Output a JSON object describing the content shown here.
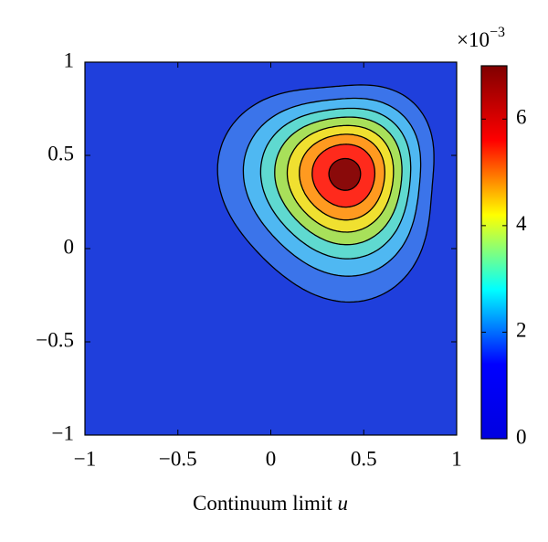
{
  "chart_data": {
    "type": "contour",
    "xlabel": "Continuum limit",
    "xlabel_variable": "u",
    "xlim": [
      -1,
      1
    ],
    "ylim": [
      -1,
      1
    ],
    "xticks": [
      {
        "value": -1,
        "label": "−1"
      },
      {
        "value": -0.5,
        "label": "−0.5"
      },
      0,
      0.5,
      1
    ],
    "yticks": [
      {
        "value": -1,
        "label": "−1"
      },
      {
        "value": -0.5,
        "label": "−0.5"
      },
      0,
      0.5,
      1
    ],
    "peak": {
      "x": 0.4,
      "y": 0.4,
      "value": 0.0067
    },
    "levels": [
      0.0008,
      0.0016,
      0.0024,
      0.0032,
      0.004,
      0.0048,
      0.0056,
      0.0064
    ],
    "colors": [
      "#1f3fdc",
      "#3b74ea",
      "#4fb8f2",
      "#5fd9d0",
      "#a8e05a",
      "#f0e030",
      "#ff9a20",
      "#ff2a1c",
      "#8a0a0a"
    ],
    "clim": [
      0,
      0.007
    ],
    "cticks": [
      0,
      {
        "value": 0.002,
        "label": "2"
      },
      {
        "value": 0.004,
        "label": "4"
      },
      {
        "value": 0.006,
        "label": "6"
      }
    ],
    "colorbar_scale": "×10",
    "colorbar_exponent": "−3",
    "colormap": [
      "#0000e0",
      "#0000ff",
      "#00ffff",
      "#ffff00",
      "#ff0000",
      "#800000"
    ]
  }
}
